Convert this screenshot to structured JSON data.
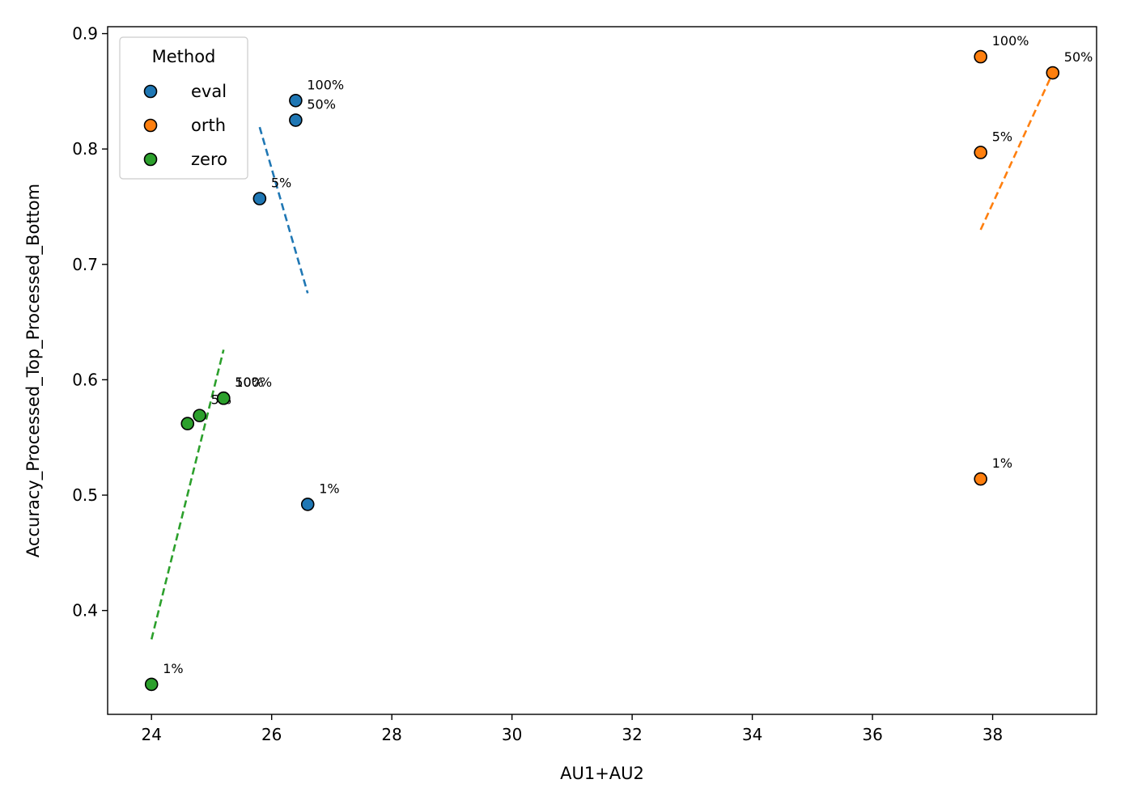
{
  "chart_data": {
    "type": "scatter",
    "title": "",
    "xlabel": "AU1+AU2",
    "ylabel": "Accuracy_Processed_Top_Processed_Bottom",
    "xlim": [
      23.27,
      39.73
    ],
    "ylim": [
      0.31,
      0.906
    ],
    "xticks": [
      24,
      26,
      28,
      30,
      32,
      34,
      36,
      38
    ],
    "yticks": [
      0.4,
      0.5,
      0.6,
      0.7,
      0.8,
      0.9
    ],
    "grid": false,
    "legend": {
      "title": "Method",
      "placement": "top-left"
    },
    "series": [
      {
        "name": "eval",
        "color": "#1f77b4",
        "points": [
          {
            "x": 26.6,
            "y": 0.492,
            "label": "1%"
          },
          {
            "x": 25.8,
            "y": 0.757,
            "label": "5%"
          },
          {
            "x": 26.4,
            "y": 0.825,
            "label": "50%"
          },
          {
            "x": 26.4,
            "y": 0.842,
            "label": "100%"
          }
        ],
        "trend": {
          "x": [
            25.8,
            26.6
          ],
          "y": [
            0.819,
            0.675
          ]
        }
      },
      {
        "name": "orth",
        "color": "#ff7f0e",
        "points": [
          {
            "x": 37.8,
            "y": 0.514,
            "label": "1%"
          },
          {
            "x": 37.8,
            "y": 0.797,
            "label": "5%"
          },
          {
            "x": 39.0,
            "y": 0.866,
            "label": "50%"
          },
          {
            "x": 37.8,
            "y": 0.88,
            "label": "100%"
          }
        ],
        "trend": {
          "x": [
            37.8,
            39.0
          ],
          "y": [
            0.73,
            0.866
          ]
        }
      },
      {
        "name": "zero",
        "color": "#2ca02c",
        "points": [
          {
            "x": 24.0,
            "y": 0.336,
            "label": "1%"
          },
          {
            "x": 24.8,
            "y": 0.569,
            "label": "5%"
          },
          {
            "x": 25.2,
            "y": 0.584,
            "label": "50%"
          },
          {
            "x": 25.2,
            "y": 0.584,
            "label": "100%"
          },
          {
            "x": 24.6,
            "y": 0.562,
            "label": ""
          }
        ],
        "trend": {
          "x": [
            24.0,
            25.2
          ],
          "y": [
            0.375,
            0.626
          ]
        }
      }
    ]
  }
}
